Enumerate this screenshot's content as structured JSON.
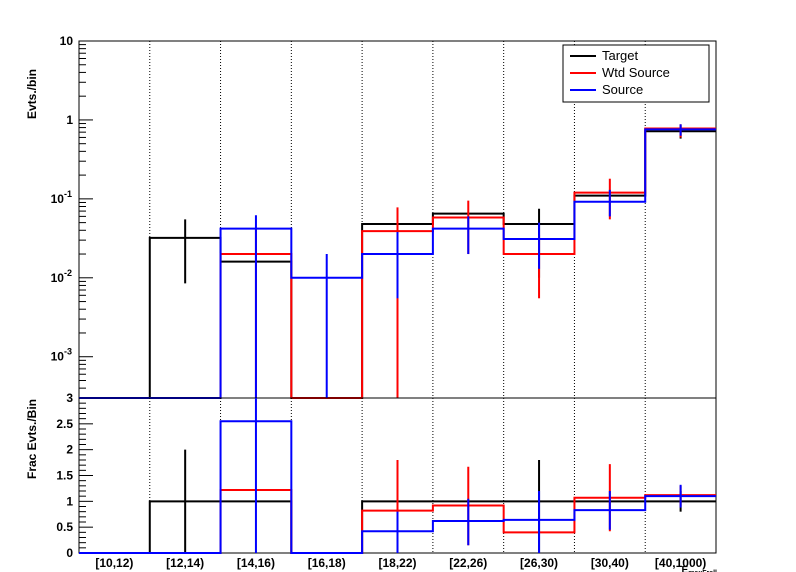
{
  "chart_data": [
    {
      "type": "step",
      "panel": "top",
      "ylabel": "Evts./bin",
      "y_scale": "log",
      "ylim": [
        0.0003,
        10
      ],
      "y_ticks": [
        {
          "value": 10,
          "mant": "10",
          "exp": ""
        },
        {
          "value": 1,
          "mant": "1",
          "exp": ""
        },
        {
          "value": 0.1,
          "mant": "10",
          "exp": "-1"
        },
        {
          "value": 0.01,
          "mant": "10",
          "exp": "-2"
        },
        {
          "value": 0.001,
          "mant": "10",
          "exp": "-3"
        }
      ],
      "grid": "vertical dotted lines at bin edges",
      "legend": {
        "placement": "top-right",
        "entries": [
          "Target",
          "Wtd Source",
          "Source"
        ]
      },
      "series": [
        {
          "name": "Target",
          "color": "#000000",
          "values": [
            null,
            0.032,
            0.016,
            null,
            0.048,
            0.065,
            0.048,
            0.11,
            0.72
          ],
          "err": [
            [
              0,
              0
            ],
            [
              0.0085,
              0.055
            ],
            [
              0,
              0
            ],
            [
              0,
              0
            ],
            [
              0,
              0
            ],
            [
              0,
              0
            ],
            [
              0.01,
              0.075
            ],
            [
              0,
              0
            ],
            [
              0.58,
              0.85
            ]
          ]
        },
        {
          "name": "Wtd Source",
          "color": "#ff0000",
          "values": [
            null,
            null,
            0.02,
            null,
            0.039,
            0.058,
            0.02,
            0.12,
            0.78
          ],
          "err": [
            [
              0,
              0
            ],
            [
              0,
              0
            ],
            [
              null,
              0.042
            ],
            [
              0,
              0
            ],
            [
              null,
              0.078
            ],
            [
              0.02,
              0.095
            ],
            [
              0.0055,
              0.035
            ],
            [
              0.055,
              0.18
            ],
            [
              0.6,
              0.88
            ]
          ]
        },
        {
          "name": "Source",
          "color": "#0000ff",
          "values": [
            null,
            null,
            0.042,
            0.01,
            0.02,
            0.042,
            0.031,
            0.092,
            0.76
          ],
          "err": [
            [
              0,
              0
            ],
            [
              0,
              0
            ],
            [
              null,
              0.062
            ],
            [
              null,
              0.02
            ],
            [
              0.0055,
              0.038
            ],
            [
              0.02,
              0.06
            ],
            [
              0.013,
              0.05
            ],
            [
              0.06,
              0.13
            ],
            [
              0.63,
              0.88
            ]
          ]
        }
      ]
    },
    {
      "type": "step",
      "panel": "bottom",
      "ylabel": "Frac Evts./Bin",
      "xlabel": "E_maxFrell",
      "ylim": [
        0,
        3
      ],
      "y_ticks": [
        "0",
        "0.5",
        "1",
        "1.5",
        "2",
        "2.5",
        "3"
      ],
      "categories": [
        "[10,12)",
        "[12,14)",
        "[14,16)",
        "[16,18)",
        "[18,22)",
        "[22,26)",
        "[26,30)",
        "[30,40)",
        "[40,1000)"
      ],
      "series": [
        {
          "name": "Target",
          "color": "#000000",
          "values": [
            0,
            1,
            1,
            0,
            1,
            1,
            1,
            1,
            1
          ],
          "err": [
            [
              0,
              0
            ],
            [
              0,
              2.0
            ],
            [
              0,
              0
            ],
            [
              0,
              0
            ],
            [
              0,
              0
            ],
            [
              0,
              0
            ],
            [
              0,
              1.8
            ],
            [
              0,
              0
            ],
            [
              0.8,
              1.2
            ]
          ]
        },
        {
          "name": "Wtd Source",
          "color": "#ff0000",
          "values": [
            0,
            0,
            1.22,
            0,
            0.82,
            0.92,
            0.4,
            1.07,
            1.12
          ],
          "err": [
            [
              0,
              0
            ],
            [
              0,
              0
            ],
            [
              0,
              0
            ],
            [
              0,
              0
            ],
            [
              0,
              1.8
            ],
            [
              0.15,
              1.67
            ],
            [
              0,
              0
            ],
            [
              0.42,
              1.72
            ],
            [
              0.9,
              1.3
            ]
          ]
        },
        {
          "name": "Source",
          "color": "#0000ff",
          "values": [
            0,
            0,
            2.55,
            0,
            0.42,
            0.62,
            0.64,
            0.83,
            1.1
          ],
          "err": [
            [
              0,
              0
            ],
            [
              0,
              0
            ],
            [
              0,
              3
            ],
            [
              0,
              0
            ],
            [
              0,
              0.8
            ],
            [
              0.15,
              1.05
            ],
            [
              0,
              1.2
            ],
            [
              0.45,
              1.2
            ],
            [
              0.88,
              1.32
            ]
          ]
        }
      ]
    }
  ]
}
